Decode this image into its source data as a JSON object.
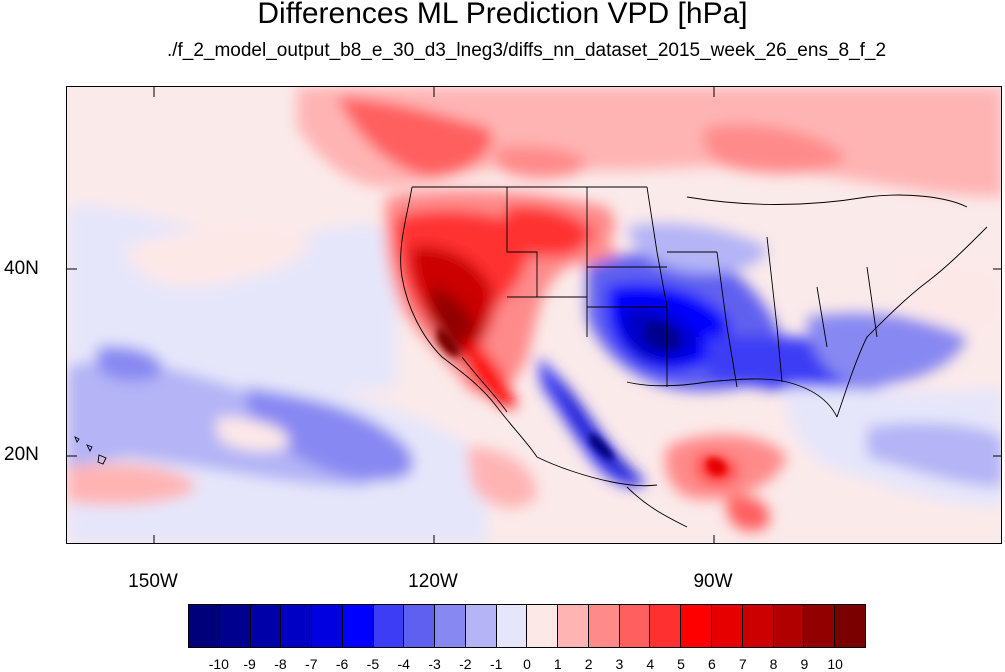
{
  "title": "Differences ML Prediction VPD [hPa]",
  "subtitle": "./f_2_model_output_b8_e_30_d3_lneg3/diffs_nn_dataset_2015_week_26_ens_8_f_2",
  "latitude_labels": [
    "40N",
    "20N"
  ],
  "longitude_labels": [
    "150W",
    "120W",
    "90W"
  ],
  "colorbar": {
    "tick_labels": [
      "-10",
      "-9",
      "-8",
      "-7",
      "-6",
      "-5",
      "-4",
      "-3",
      "-2",
      "-1",
      "0",
      "1",
      "2",
      "3",
      "4",
      "5",
      "6",
      "7",
      "8",
      "9",
      "10"
    ],
    "colors": [
      "#00007a",
      "#00008f",
      "#0000a8",
      "#0000c4",
      "#0000e0",
      "#0000ff",
      "#3d3df5",
      "#6060f0",
      "#8888f2",
      "#b4b4f6",
      "#e6e6fa",
      "#fde8e8",
      "#ffb4b4",
      "#ff8a8a",
      "#ff5f5f",
      "#ff3030",
      "#ff0000",
      "#e60000",
      "#cc0000",
      "#b00000",
      "#930000",
      "#7a0000"
    ]
  },
  "map_extent": {
    "lon_min": -160,
    "lon_max": -60,
    "lat_min": 10,
    "lat_max": 59
  },
  "icons": {
    "map": "geo-contour-map"
  }
}
